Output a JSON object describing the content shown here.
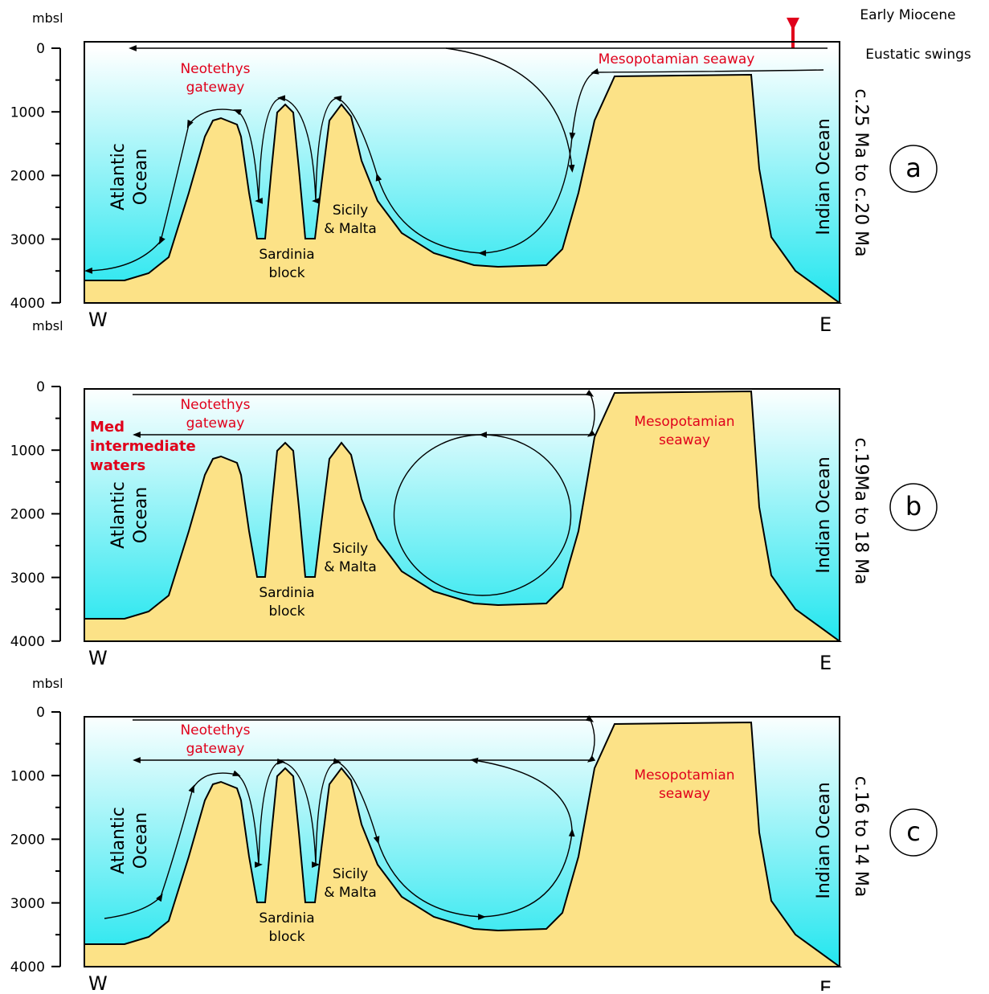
{
  "header": {
    "period": "Early Miocene",
    "eustatic": "Eustatic swings"
  },
  "panels": [
    {
      "letter": "a",
      "age": "c.25 Ma to c.20 Ma",
      "unit": "mbsl",
      "yticks": [
        "0",
        "1000",
        "2000",
        "3000",
        "4000"
      ],
      "west": "W",
      "east": "E",
      "atlantic": [
        "Atlantic",
        "Ocean"
      ],
      "indian": "Indian Ocean",
      "sardinia": [
        "Sardinia",
        "block"
      ],
      "sicily": [
        "Sicily",
        "& Malta"
      ],
      "neotethys": [
        "Neotethys",
        "gateway"
      ],
      "mesopotamian": [
        "Mesopotamian seaway"
      ]
    },
    {
      "letter": "b",
      "age": "c.19Ma to 18 Ma",
      "unit": "mbsl",
      "yticks": [
        "0",
        "1000",
        "2000",
        "3000",
        "4000"
      ],
      "west": "W",
      "east": "E",
      "atlantic": [
        "Atlantic",
        "Ocean"
      ],
      "indian": "Indian Ocean",
      "sardinia": [
        "Sardinia",
        "block"
      ],
      "sicily": [
        "Sicily",
        "& Malta"
      ],
      "neotethys": [
        "Neotethys",
        "gateway"
      ],
      "mesopotamian": [
        "Mesopotamian",
        "seaway"
      ],
      "med": [
        "Med",
        "intermediate",
        "waters"
      ]
    },
    {
      "letter": "c",
      "age": "c.16 to 14 Ma",
      "unit": "mbsl",
      "yticks": [
        "0",
        "1000",
        "2000",
        "3000",
        "4000"
      ],
      "west": "W",
      "east": "E",
      "atlantic": [
        "Atlantic",
        "Ocean"
      ],
      "indian": "Indian Ocean",
      "sardinia": [
        "Sardinia",
        "block"
      ],
      "sicily": [
        "Sicily",
        "& Malta"
      ],
      "neotethys": [
        "Neotethys",
        "gateway"
      ],
      "mesopotamian": [
        "Mesopotamian",
        "seaway"
      ]
    }
  ]
}
